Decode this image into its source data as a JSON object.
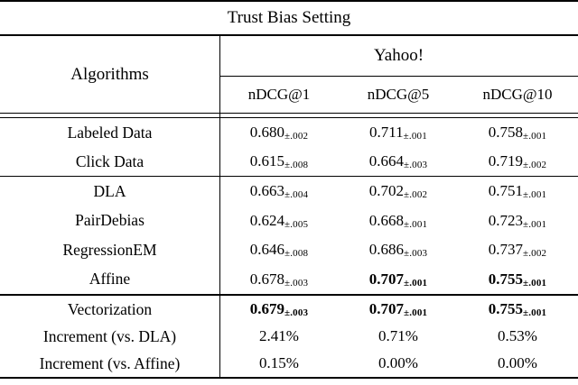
{
  "title": "Trust Bias Setting",
  "colors": {
    "text": "#000000",
    "background": "#ffffff"
  },
  "header": {
    "algorithms_label": "Algorithms",
    "dataset_label": "Yahoo!",
    "metrics": [
      "nDCG@1",
      "nDCG@5",
      "nDCG@10"
    ]
  },
  "rows": [
    {
      "label": "Labeled Data",
      "cells": [
        {
          "v": "0.680",
          "sub": "±.002",
          "bold": false
        },
        {
          "v": "0.711",
          "sub": "±.001",
          "bold": false
        },
        {
          "v": "0.758",
          "sub": "±.001",
          "bold": false
        }
      ]
    },
    {
      "label": "Click Data",
      "cells": [
        {
          "v": "0.615",
          "sub": "±.008",
          "bold": false
        },
        {
          "v": "0.664",
          "sub": "±.003",
          "bold": false
        },
        {
          "v": "0.719",
          "sub": "±.002",
          "bold": false
        }
      ]
    },
    {
      "label": "DLA",
      "cells": [
        {
          "v": "0.663",
          "sub": "±.004",
          "bold": false
        },
        {
          "v": "0.702",
          "sub": "±.002",
          "bold": false
        },
        {
          "v": "0.751",
          "sub": "±.001",
          "bold": false
        }
      ]
    },
    {
      "label": "PairDebias",
      "cells": [
        {
          "v": "0.624",
          "sub": "±.005",
          "bold": false
        },
        {
          "v": "0.668",
          "sub": "±.001",
          "bold": false
        },
        {
          "v": "0.723",
          "sub": "±.001",
          "bold": false
        }
      ]
    },
    {
      "label": "RegressionEM",
      "cells": [
        {
          "v": "0.646",
          "sub": "±.008",
          "bold": false
        },
        {
          "v": "0.686",
          "sub": "±.003",
          "bold": false
        },
        {
          "v": "0.737",
          "sub": "±.002",
          "bold": false
        }
      ]
    },
    {
      "label": "Affine",
      "cells": [
        {
          "v": "0.678",
          "sub": "±.003",
          "bold": false
        },
        {
          "v": "0.707",
          "sub": "±.001",
          "bold": true
        },
        {
          "v": "0.755",
          "sub": "±.001",
          "bold": true
        }
      ]
    },
    {
      "label": "Vectorization",
      "cells": [
        {
          "v": "0.679",
          "sub": "±.003",
          "bold": true
        },
        {
          "v": "0.707",
          "sub": "±.001",
          "bold": true
        },
        {
          "v": "0.755",
          "sub": "±.001",
          "bold": true
        }
      ]
    },
    {
      "label": "Increment (vs. DLA)",
      "cells": [
        {
          "v": "2.41%",
          "sub": "",
          "bold": false
        },
        {
          "v": "0.71%",
          "sub": "",
          "bold": false
        },
        {
          "v": "0.53%",
          "sub": "",
          "bold": false
        }
      ]
    },
    {
      "label": "Increment (vs. Affine)",
      "cells": [
        {
          "v": "0.15%",
          "sub": "",
          "bold": false
        },
        {
          "v": "0.00%",
          "sub": "",
          "bold": false
        },
        {
          "v": "0.00%",
          "sub": "",
          "bold": false
        }
      ]
    }
  ]
}
